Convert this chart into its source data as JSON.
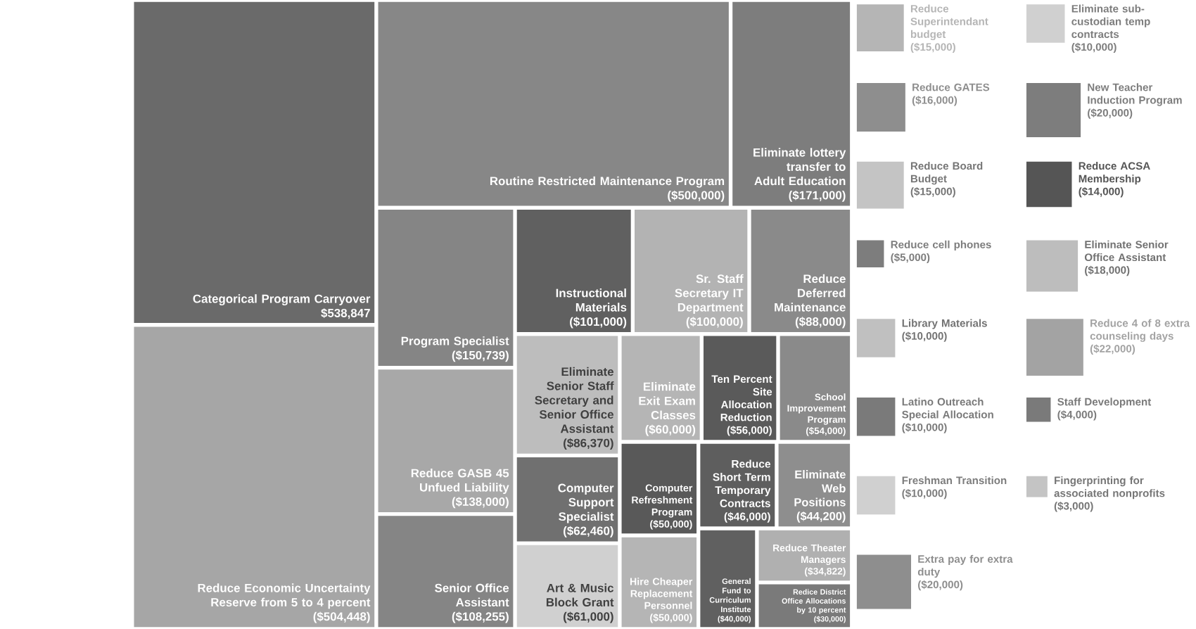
{
  "chart_data": {
    "type": "other",
    "categories": [
      "Reduce Superintendant budget",
      "Reduce Theater Managers",
      "Art & Music Block Grant",
      "School Improvement Program",
      "Routine Restricted Maintenance Program",
      "Reduce GATES",
      "Reduce Board Budget",
      "Redice District Office Allocations by 10 percent",
      "Computer Refreshment Program",
      "Reduce cell phones",
      "Library Materials",
      "Latino Outreach Special Allocation",
      "Freshman Transition",
      "Extra pay for extra duty",
      "Eliminate sub-custodian temp contracts",
      "New Teacher Induction Program",
      "Categorical Program Carryover",
      "Reduce Deferred Maintenance",
      "Reduce GASB 45 Unfued Liability",
      "Eliminate Senior Staff Secretary and Senior Office Assistant",
      "Ten Percent Site Allocation Reduction",
      "Reduce Economic Uncertainty Reserve from 5 to 4 percent",
      "Sr. Staff Secretary IT Department",
      "Program Specialist",
      "Eliminate Exit Exam Classes",
      "Reduce ACSA Membership",
      "Eliminate Senior Office Assistant",
      "Reduce 4 of 8 extra counseling days",
      "Staff Development",
      "Fingerprinting for associated nonprofits",
      "Senior Office Assistant",
      "Instructional Materials",
      "Eliminate lottery transfer to Adult Education",
      "Eliminate Web Positions",
      "Reduce Short Term Temporary Contracts",
      "Computer Support Specialist",
      "Hire Cheaper Replacement Personnel",
      "General Fund to Curriculum Institute"
    ],
    "values": [
      15000,
      34822,
      61000,
      54000,
      500000,
      16000,
      15000,
      30000,
      50000,
      5000,
      10000,
      10000,
      10000,
      20000,
      10000,
      20000,
      538847,
      88000,
      138000,
      86370,
      56000,
      504448,
      100000,
      150739,
      60000,
      14000,
      18000,
      22000,
      4000,
      3000,
      108255,
      101000,
      171000,
      44200,
      46000,
      62460,
      50000,
      40000
    ],
    "value_labels": [
      "($15,000)",
      "($34,822)",
      "($61,000)",
      "($54,000)",
      "($500,000)",
      "($16,000)",
      "($15,000)",
      "($30,000)",
      "($50,000)",
      "($5,000)",
      "($10,000)",
      "($10,000)",
      "($10,000)",
      "($20,000)",
      "($10,000)",
      "($20,000)",
      "$538,847",
      "($88,000)",
      "($138,000)",
      "($86,370)",
      "($56,000)",
      "($504,448)",
      "($100,000)",
      "($150,739)",
      "($60,000)",
      "($14,000)",
      "($18,000)",
      "($22,000)",
      "($4,000)",
      "($3,000)",
      "($108,255)",
      "($101,000)",
      "($171,000)",
      "($44,200)",
      "($46,000)",
      "($62,460)",
      "($50,000)",
      "($40,000)"
    ],
    "colors": [
      "#b5b5b5",
      "#b0b0b0",
      "#d0d0d0",
      "#8a8a8a",
      "#878787",
      "#8e8e8e",
      "#c4c4c4",
      "#7a7a7a",
      "#595959",
      "#7d7d7d",
      "#c0c0c0",
      "#7a7a7a",
      "#d0d0d0",
      "#8e8e8e",
      "#d0d0d0",
      "#7d7d7d",
      "#6a6a6a",
      "#8a8a8a",
      "#a8a8a8",
      "#bdbdbd",
      "#5a5a5a",
      "#a6a6a6",
      "#b3b3b3",
      "#858585",
      "#b5b5b5",
      "#555555",
      "#bdbdbd",
      "#a3a3a3",
      "#7a7a7a",
      "#c4c4c4",
      "#858585",
      "#606060",
      "#7d7d7d",
      "#8e8e8e",
      "#5e5e5e",
      "#707070",
      "#b5b5b5",
      "#606060"
    ]
  }
}
